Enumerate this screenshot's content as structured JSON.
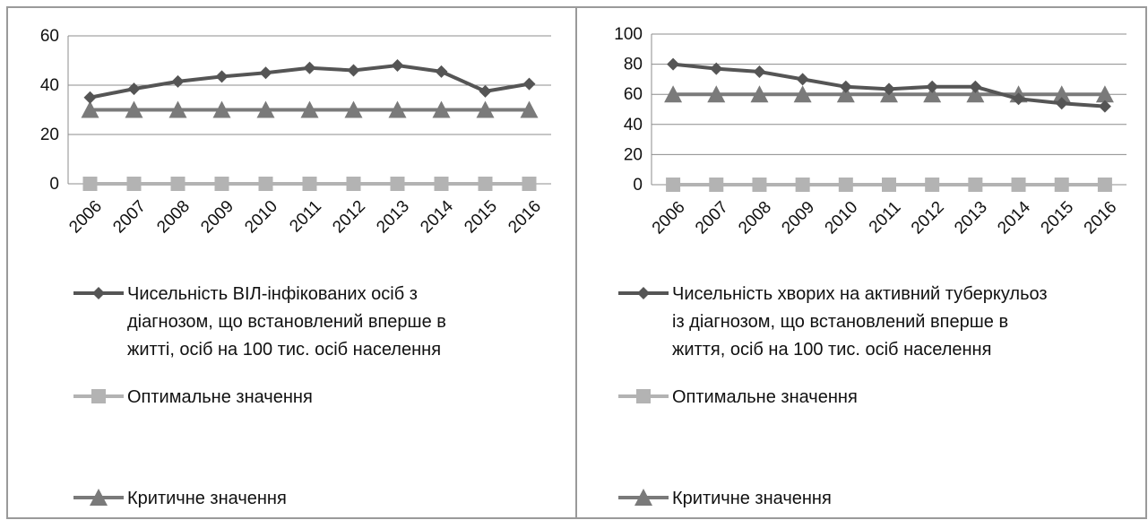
{
  "chart_data": [
    {
      "type": "line",
      "categories": [
        "2006",
        "2007",
        "2008",
        "2009",
        "2010",
        "2011",
        "2012",
        "2013",
        "2014",
        "2015",
        "2016"
      ],
      "ylim": [
        0,
        60
      ],
      "yticks": [
        "0",
        "20",
        "40",
        "60"
      ],
      "grid": true,
      "legend": "bottom",
      "series": [
        {
          "name_lines": [
            "Чисельність ВІЛ-інфікованих осіб з",
            "діагнозом, що встановлений вперше в",
            "житті, осіб на 100 тис. осіб населення"
          ],
          "values": [
            35,
            38.5,
            41.5,
            43.5,
            45,
            47,
            46,
            48,
            45.5,
            37.5,
            40.5
          ],
          "color": "#555555",
          "marker": "diamond"
        },
        {
          "name_lines": [
            "Оптимальне значення"
          ],
          "values": [
            0,
            0,
            0,
            0,
            0,
            0,
            0,
            0,
            0,
            0,
            0
          ],
          "color": "#b3b3b3",
          "marker": "square"
        },
        {
          "name_lines": [
            "Критичне значення"
          ],
          "values": [
            30,
            30,
            30,
            30,
            30,
            30,
            30,
            30,
            30,
            30,
            30
          ],
          "color": "#7a7a7a",
          "marker": "triangle"
        }
      ]
    },
    {
      "type": "line",
      "categories": [
        "2006",
        "2007",
        "2008",
        "2009",
        "2010",
        "2011",
        "2012",
        "2013",
        "2014",
        "2015",
        "2016"
      ],
      "ylim": [
        0,
        100
      ],
      "yticks": [
        "0",
        "20",
        "40",
        "60",
        "80",
        "100"
      ],
      "grid": true,
      "legend": "bottom",
      "series": [
        {
          "name_lines": [
            "Чисельність хворих на активний туберкульоз",
            "із діагнозом, що встановлений вперше в",
            "життя, осіб на 100 тис. осіб населення"
          ],
          "values": [
            80,
            77,
            75,
            70,
            65,
            63.5,
            65,
            65,
            57,
            54,
            52
          ],
          "color": "#555555",
          "marker": "diamond"
        },
        {
          "name_lines": [
            "Оптимальне значення"
          ],
          "values": [
            0,
            0,
            0,
            0,
            0,
            0,
            0,
            0,
            0,
            0,
            0
          ],
          "color": "#b3b3b3",
          "marker": "square"
        },
        {
          "name_lines": [
            "Критичне значення"
          ],
          "values": [
            60,
            60,
            60,
            60,
            60,
            60,
            60,
            60,
            60,
            60,
            60
          ],
          "color": "#7a7a7a",
          "marker": "triangle"
        }
      ]
    }
  ]
}
